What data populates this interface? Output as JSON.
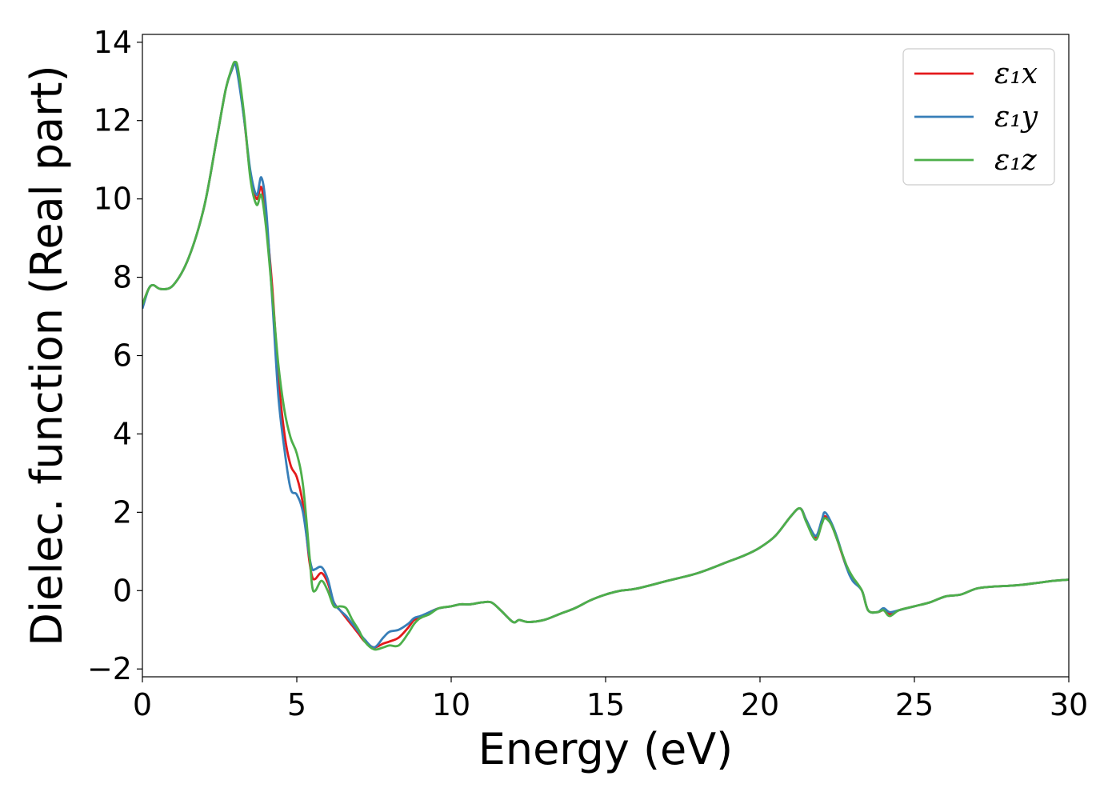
{
  "chart_data": {
    "type": "line",
    "title": "",
    "xlabel": "Energy (eV)",
    "ylabel": "Dielec. function (Real part)",
    "xlim": [
      0,
      30
    ],
    "ylim": [
      -2.2,
      14.2
    ],
    "xticks": [
      0,
      5,
      10,
      15,
      20,
      25,
      30
    ],
    "xtick_labels": [
      "0",
      "5",
      "10",
      "15",
      "20",
      "25",
      "30"
    ],
    "yticks": [
      -2,
      0,
      2,
      4,
      6,
      8,
      10,
      12,
      14
    ],
    "ytick_labels": [
      "−2",
      "0",
      "2",
      "4",
      "6",
      "8",
      "10",
      "12",
      "14"
    ],
    "grid": false,
    "legend_position": "top-right",
    "series": [
      {
        "name": "ε₁x",
        "color": "#e41a1c",
        "x": [
          0,
          0.2,
          0.35,
          0.6,
          1.0,
          1.5,
          2.0,
          2.4,
          2.7,
          2.9,
          3.0,
          3.1,
          3.3,
          3.5,
          3.7,
          3.85,
          4.0,
          4.2,
          4.4,
          4.6,
          4.8,
          5.0,
          5.2,
          5.4,
          5.5,
          5.6,
          5.8,
          6.0,
          6.2,
          6.4,
          6.6,
          6.8,
          7.0,
          7.2,
          7.5,
          7.8,
          8.0,
          8.3,
          8.6,
          8.8,
          9.0,
          9.3,
          9.6,
          10.0,
          10.3,
          10.6,
          11.0,
          11.3,
          11.6,
          12.0,
          12.2,
          12.5,
          13.0,
          13.5,
          14.0,
          14.5,
          15.0,
          15.5,
          16.0,
          17.0,
          18.0,
          19.0,
          19.5,
          20.0,
          20.5,
          21.0,
          21.3,
          21.5,
          21.8,
          22.0,
          22.1,
          22.3,
          22.5,
          22.8,
          23.0,
          23.3,
          23.5,
          23.8,
          24.0,
          24.2,
          24.5,
          25.0,
          25.5,
          26.0,
          26.5,
          27.0,
          27.5,
          28.0,
          28.5,
          29.0,
          29.5,
          30.0
        ],
        "y": [
          7.3,
          7.7,
          7.8,
          7.7,
          7.8,
          8.5,
          9.8,
          11.5,
          12.8,
          13.3,
          13.45,
          13.2,
          12.0,
          10.6,
          10.0,
          10.3,
          9.5,
          7.8,
          5.5,
          4.0,
          3.2,
          2.9,
          2.2,
          0.8,
          0.35,
          0.3,
          0.45,
          0.2,
          -0.3,
          -0.5,
          -0.7,
          -0.9,
          -1.1,
          -1.3,
          -1.45,
          -1.35,
          -1.3,
          -1.2,
          -0.95,
          -0.75,
          -0.7,
          -0.55,
          -0.45,
          -0.4,
          -0.35,
          -0.35,
          -0.3,
          -0.3,
          -0.5,
          -0.8,
          -0.75,
          -0.8,
          -0.75,
          -0.6,
          -0.45,
          -0.25,
          -0.1,
          0.0,
          0.05,
          0.25,
          0.45,
          0.75,
          0.9,
          1.1,
          1.4,
          1.9,
          2.1,
          1.8,
          1.35,
          1.7,
          1.9,
          1.7,
          1.3,
          0.6,
          0.3,
          0.0,
          -0.5,
          -0.55,
          -0.5,
          -0.6,
          -0.5,
          -0.4,
          -0.3,
          -0.15,
          -0.1,
          0.05,
          0.1,
          0.12,
          0.15,
          0.2,
          0.25,
          0.28
        ]
      },
      {
        "name": "ε₁y",
        "color": "#377eb8",
        "x": [
          0,
          0.2,
          0.35,
          0.6,
          1.0,
          1.5,
          2.0,
          2.4,
          2.7,
          2.9,
          3.0,
          3.1,
          3.3,
          3.5,
          3.7,
          3.85,
          4.0,
          4.2,
          4.4,
          4.6,
          4.8,
          5.0,
          5.2,
          5.4,
          5.5,
          5.6,
          5.8,
          6.0,
          6.2,
          6.4,
          6.6,
          6.8,
          7.0,
          7.2,
          7.5,
          7.8,
          8.0,
          8.3,
          8.6,
          8.8,
          9.0,
          9.3,
          9.6,
          10.0,
          10.3,
          10.6,
          11.0,
          11.3,
          11.6,
          12.0,
          12.2,
          12.5,
          13.0,
          13.5,
          14.0,
          14.5,
          15.0,
          15.5,
          16.0,
          17.0,
          18.0,
          19.0,
          19.5,
          20.0,
          20.5,
          21.0,
          21.3,
          21.5,
          21.8,
          22.0,
          22.1,
          22.3,
          22.5,
          22.8,
          23.0,
          23.3,
          23.5,
          23.8,
          24.0,
          24.2,
          24.5,
          25.0,
          25.5,
          26.0,
          26.5,
          27.0,
          27.5,
          28.0,
          28.5,
          29.0,
          29.5,
          30.0
        ],
        "y": [
          7.2,
          7.7,
          7.8,
          7.7,
          7.8,
          8.5,
          9.8,
          11.5,
          12.8,
          13.3,
          13.45,
          13.1,
          12.0,
          10.7,
          10.1,
          10.55,
          9.8,
          7.5,
          5.0,
          3.6,
          2.6,
          2.45,
          2.0,
          0.9,
          0.55,
          0.55,
          0.6,
          0.3,
          -0.3,
          -0.5,
          -0.65,
          -0.85,
          -1.05,
          -1.25,
          -1.45,
          -1.2,
          -1.05,
          -1.0,
          -0.85,
          -0.7,
          -0.65,
          -0.55,
          -0.45,
          -0.4,
          -0.35,
          -0.35,
          -0.3,
          -0.3,
          -0.5,
          -0.8,
          -0.75,
          -0.8,
          -0.75,
          -0.6,
          -0.45,
          -0.25,
          -0.1,
          0.0,
          0.05,
          0.25,
          0.45,
          0.75,
          0.9,
          1.1,
          1.4,
          1.9,
          2.1,
          1.8,
          1.4,
          1.8,
          2.0,
          1.75,
          1.35,
          0.6,
          0.25,
          0.0,
          -0.5,
          -0.55,
          -0.45,
          -0.55,
          -0.5,
          -0.4,
          -0.3,
          -0.15,
          -0.1,
          0.05,
          0.1,
          0.12,
          0.15,
          0.2,
          0.25,
          0.28
        ]
      },
      {
        "name": "ε₁z",
        "color": "#4daf4a",
        "x": [
          0,
          0.2,
          0.35,
          0.6,
          1.0,
          1.5,
          2.0,
          2.4,
          2.7,
          2.9,
          3.0,
          3.1,
          3.3,
          3.5,
          3.7,
          3.85,
          4.0,
          4.2,
          4.4,
          4.6,
          4.8,
          5.0,
          5.2,
          5.4,
          5.5,
          5.6,
          5.8,
          6.0,
          6.2,
          6.4,
          6.6,
          6.8,
          7.0,
          7.2,
          7.5,
          7.8,
          8.0,
          8.3,
          8.6,
          8.8,
          9.0,
          9.3,
          9.6,
          10.0,
          10.3,
          10.6,
          11.0,
          11.3,
          11.6,
          12.0,
          12.2,
          12.5,
          13.0,
          13.5,
          14.0,
          14.5,
          15.0,
          15.5,
          16.0,
          17.0,
          18.0,
          19.0,
          19.5,
          20.0,
          20.5,
          21.0,
          21.3,
          21.5,
          21.8,
          22.0,
          22.1,
          22.3,
          22.5,
          22.8,
          23.0,
          23.3,
          23.5,
          23.8,
          24.0,
          24.2,
          24.5,
          25.0,
          25.5,
          26.0,
          26.5,
          27.0,
          27.5,
          28.0,
          28.5,
          29.0,
          29.5,
          30.0
        ],
        "y": [
          7.3,
          7.7,
          7.8,
          7.7,
          7.8,
          8.5,
          9.8,
          11.5,
          12.8,
          13.35,
          13.5,
          13.3,
          12.1,
          10.5,
          9.85,
          10.1,
          9.3,
          7.6,
          5.8,
          4.6,
          3.9,
          3.5,
          2.7,
          1.0,
          0.1,
          0.0,
          0.25,
          0.0,
          -0.4,
          -0.4,
          -0.45,
          -0.75,
          -1.0,
          -1.3,
          -1.5,
          -1.45,
          -1.4,
          -1.4,
          -1.1,
          -0.85,
          -0.7,
          -0.6,
          -0.45,
          -0.4,
          -0.35,
          -0.35,
          -0.3,
          -0.3,
          -0.5,
          -0.8,
          -0.75,
          -0.8,
          -0.75,
          -0.6,
          -0.45,
          -0.25,
          -0.1,
          0.0,
          0.05,
          0.25,
          0.45,
          0.75,
          0.9,
          1.1,
          1.4,
          1.9,
          2.1,
          1.75,
          1.3,
          1.7,
          1.85,
          1.7,
          1.3,
          0.65,
          0.35,
          0.0,
          -0.5,
          -0.55,
          -0.5,
          -0.65,
          -0.5,
          -0.4,
          -0.3,
          -0.15,
          -0.1,
          0.05,
          0.1,
          0.12,
          0.15,
          0.2,
          0.25,
          0.28
        ]
      }
    ]
  }
}
